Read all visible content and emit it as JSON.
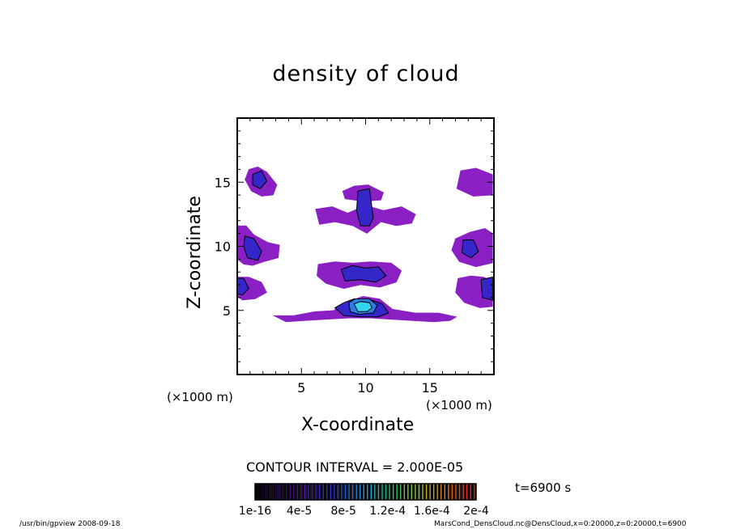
{
  "chart_data": {
    "type": "contour",
    "title": "density of cloud",
    "xlabel": "X-coordinate",
    "ylabel": "Z-coordinate",
    "x_unit": "(×1000 m)",
    "y_unit": "(×1000 m)",
    "xlim": [
      0,
      20
    ],
    "ylim": [
      0,
      20
    ],
    "x_ticks": [
      5,
      10,
      15
    ],
    "y_ticks": [
      5,
      10,
      15
    ],
    "x_tick_labels": [
      "5",
      "10",
      "15"
    ],
    "y_tick_labels": [
      "5",
      "10",
      "15"
    ],
    "contour_interval_text": "CONTOUR INTERVAL = 2.000E-05",
    "time_text": "t=6900 s",
    "colorbar": {
      "tick_labels": [
        "1e-16",
        "4e-5",
        "8e-5",
        "1.2e-4",
        "1.6e-4",
        "2e-4"
      ],
      "range": [
        1e-16,
        0.0002
      ]
    },
    "cloud_regions": [
      {
        "level": 1,
        "color": "#8a1fc4",
        "points": [
          [
            0.9,
            16
          ],
          [
            1.6,
            16.2
          ],
          [
            2.3,
            15.8
          ],
          [
            3.1,
            14.8
          ],
          [
            2.8,
            14
          ],
          [
            1.9,
            13.9
          ],
          [
            1.1,
            14.3
          ],
          [
            0.6,
            15.2
          ]
        ]
      },
      {
        "level": 1,
        "color": "#8a1fc4",
        "points": [
          [
            17.4,
            15.9
          ],
          [
            18.6,
            16.1
          ],
          [
            19.9,
            15.6
          ],
          [
            19.9,
            14
          ],
          [
            18.4,
            13.9
          ],
          [
            17.1,
            14.5
          ]
        ]
      },
      {
        "level": 1,
        "color": "#8a1fc4",
        "points": [
          [
            8.2,
            14.3
          ],
          [
            9.1,
            14.7
          ],
          [
            10.2,
            14.8
          ],
          [
            11.4,
            14.2
          ],
          [
            11.2,
            13.6
          ],
          [
            9.8,
            13.5
          ],
          [
            8.4,
            13.7
          ]
        ]
      },
      {
        "level": 1,
        "color": "#8a1fc4",
        "points": [
          [
            6.1,
            12.9
          ],
          [
            7.4,
            13.1
          ],
          [
            8.6,
            12.6
          ],
          [
            10,
            13.2
          ],
          [
            11.4,
            12.8
          ],
          [
            12.8,
            13.1
          ],
          [
            13.9,
            12.5
          ],
          [
            13.6,
            11.8
          ],
          [
            12.4,
            11.6
          ],
          [
            11.2,
            11.9
          ],
          [
            10.1,
            11
          ],
          [
            9,
            11.6
          ],
          [
            7.6,
            11.9
          ],
          [
            6.4,
            11.7
          ]
        ]
      },
      {
        "level": 1,
        "color": "#8a1fc4",
        "points": [
          [
            0,
            11.6
          ],
          [
            0.7,
            11.6
          ],
          [
            1.3,
            10.9
          ],
          [
            2.4,
            10.3
          ],
          [
            3.3,
            10.1
          ],
          [
            3.2,
            9.1
          ],
          [
            2.1,
            8.8
          ],
          [
            1.2,
            8.5
          ],
          [
            0.5,
            8.6
          ],
          [
            0,
            9
          ]
        ]
      },
      {
        "level": 1,
        "color": "#8a1fc4",
        "points": [
          [
            17,
            10.6
          ],
          [
            18.1,
            11.1
          ],
          [
            19.3,
            11.4
          ],
          [
            19.9,
            11
          ],
          [
            19.9,
            8.7
          ],
          [
            18.6,
            8.4
          ],
          [
            17.3,
            8.8
          ],
          [
            16.7,
            9.7
          ]
        ]
      },
      {
        "level": 1,
        "color": "#8a1fc4",
        "points": [
          [
            6.3,
            8.6
          ],
          [
            7.6,
            8.8
          ],
          [
            9,
            8.7
          ],
          [
            10.4,
            8.8
          ],
          [
            12,
            8.7
          ],
          [
            12.8,
            8.1
          ],
          [
            12.4,
            7.2
          ],
          [
            11.1,
            6.8
          ],
          [
            9.6,
            7
          ],
          [
            8.3,
            6.7
          ],
          [
            6.9,
            7.1
          ],
          [
            6.2,
            7.7
          ]
        ]
      },
      {
        "level": 1,
        "color": "#8a1fc4",
        "points": [
          [
            0,
            7.6
          ],
          [
            0.9,
            7.6
          ],
          [
            1.9,
            7.2
          ],
          [
            2.3,
            6.4
          ],
          [
            1.4,
            5.9
          ],
          [
            0.4,
            5.8
          ],
          [
            0,
            6.1
          ]
        ]
      },
      {
        "level": 1,
        "color": "#8a1fc4",
        "points": [
          [
            17.2,
            7.5
          ],
          [
            18.2,
            7.7
          ],
          [
            19.2,
            7.6
          ],
          [
            19.9,
            7.3
          ],
          [
            19.9,
            5.3
          ],
          [
            18.9,
            5.2
          ],
          [
            17.7,
            5.6
          ],
          [
            17,
            6.4
          ]
        ]
      },
      {
        "level": 1,
        "color": "#8a1fc4",
        "points": [
          [
            2.8,
            4.6
          ],
          [
            4.4,
            4.6
          ],
          [
            6,
            4.9
          ],
          [
            7.5,
            5
          ],
          [
            8.6,
            5.7
          ],
          [
            9.8,
            6.1
          ],
          [
            11.1,
            5.9
          ],
          [
            12.1,
            5.1
          ],
          [
            13.9,
            4.8
          ],
          [
            15.7,
            4.8
          ],
          [
            17.1,
            4.5
          ],
          [
            16.6,
            4.2
          ],
          [
            15.3,
            4.1
          ],
          [
            13.6,
            4.2
          ],
          [
            11.9,
            4.3
          ],
          [
            10.4,
            4.4
          ],
          [
            8.7,
            4.4
          ],
          [
            7,
            4.3
          ],
          [
            5.3,
            4.2
          ],
          [
            3.8,
            4.1
          ]
        ]
      },
      {
        "level": 2,
        "color": "#3426c9",
        "points": [
          [
            1.2,
            15.6
          ],
          [
            1.9,
            15.9
          ],
          [
            2.3,
            15.1
          ],
          [
            1.8,
            14.5
          ],
          [
            1.2,
            14.8
          ]
        ]
      },
      {
        "level": 2,
        "color": "#3426c9",
        "points": [
          [
            9.4,
            14.3
          ],
          [
            10.3,
            14.5
          ],
          [
            10.6,
            12.2
          ],
          [
            10.3,
            11.6
          ],
          [
            9.6,
            11.6
          ],
          [
            9.3,
            12.8
          ]
        ]
      },
      {
        "level": 2,
        "color": "#3426c9",
        "points": [
          [
            0.6,
            10.8
          ],
          [
            1.3,
            10.6
          ],
          [
            1.9,
            9.6
          ],
          [
            1.6,
            8.9
          ],
          [
            0.8,
            9.1
          ],
          [
            0.5,
            10
          ]
        ]
      },
      {
        "level": 2,
        "color": "#3426c9",
        "points": [
          [
            17.6,
            10.5
          ],
          [
            18.4,
            10.5
          ],
          [
            18.8,
            9.6
          ],
          [
            18.2,
            9.1
          ],
          [
            17.5,
            9.5
          ]
        ]
      },
      {
        "level": 2,
        "color": "#3426c9",
        "points": [
          [
            8.1,
            8.2
          ],
          [
            9,
            8.5
          ],
          [
            10,
            8.3
          ],
          [
            11,
            8.4
          ],
          [
            11.6,
            7.7
          ],
          [
            10.8,
            7.2
          ],
          [
            9.6,
            7.4
          ],
          [
            8.4,
            7.3
          ]
        ]
      },
      {
        "level": 2,
        "color": "#3426c9",
        "points": [
          [
            0,
            7.5
          ],
          [
            0.5,
            7.5
          ],
          [
            0.9,
            6.7
          ],
          [
            0.4,
            6.2
          ],
          [
            0,
            6.3
          ]
        ]
      },
      {
        "level": 2,
        "color": "#3426c9",
        "points": [
          [
            19,
            7.4
          ],
          [
            19.9,
            7.6
          ],
          [
            19.9,
            5.8
          ],
          [
            19.1,
            6
          ]
        ]
      },
      {
        "level": 2,
        "color": "#3426c9",
        "points": [
          [
            7.6,
            5.2
          ],
          [
            8.3,
            5.6
          ],
          [
            9.1,
            5.9
          ],
          [
            10.2,
            5.9
          ],
          [
            11.3,
            5.5
          ],
          [
            11.8,
            4.8
          ],
          [
            11,
            4.5
          ],
          [
            9.7,
            4.5
          ],
          [
            8.3,
            4.6
          ]
        ]
      },
      {
        "level": 3,
        "color": "#2b7de6",
        "points": [
          [
            8.7,
            5.6
          ],
          [
            9.2,
            5.9
          ],
          [
            10.3,
            5.9
          ],
          [
            10.9,
            5.4
          ],
          [
            10.6,
            4.8
          ],
          [
            9.5,
            4.7
          ],
          [
            8.8,
            4.9
          ]
        ]
      },
      {
        "level": 4,
        "color": "#37d4f0",
        "points": [
          [
            9.1,
            5.5
          ],
          [
            9.6,
            5.7
          ],
          [
            10.3,
            5.6
          ],
          [
            10.5,
            5.2
          ],
          [
            10.1,
            4.9
          ],
          [
            9.4,
            4.9
          ]
        ]
      }
    ]
  },
  "footer": {
    "path_note": "/usr/bin/gpview  2008-09-18",
    "file_note": "MarsCond_DensCloud.nc@DensCloud,x=0:20000,z=0:20000,t=6900"
  }
}
